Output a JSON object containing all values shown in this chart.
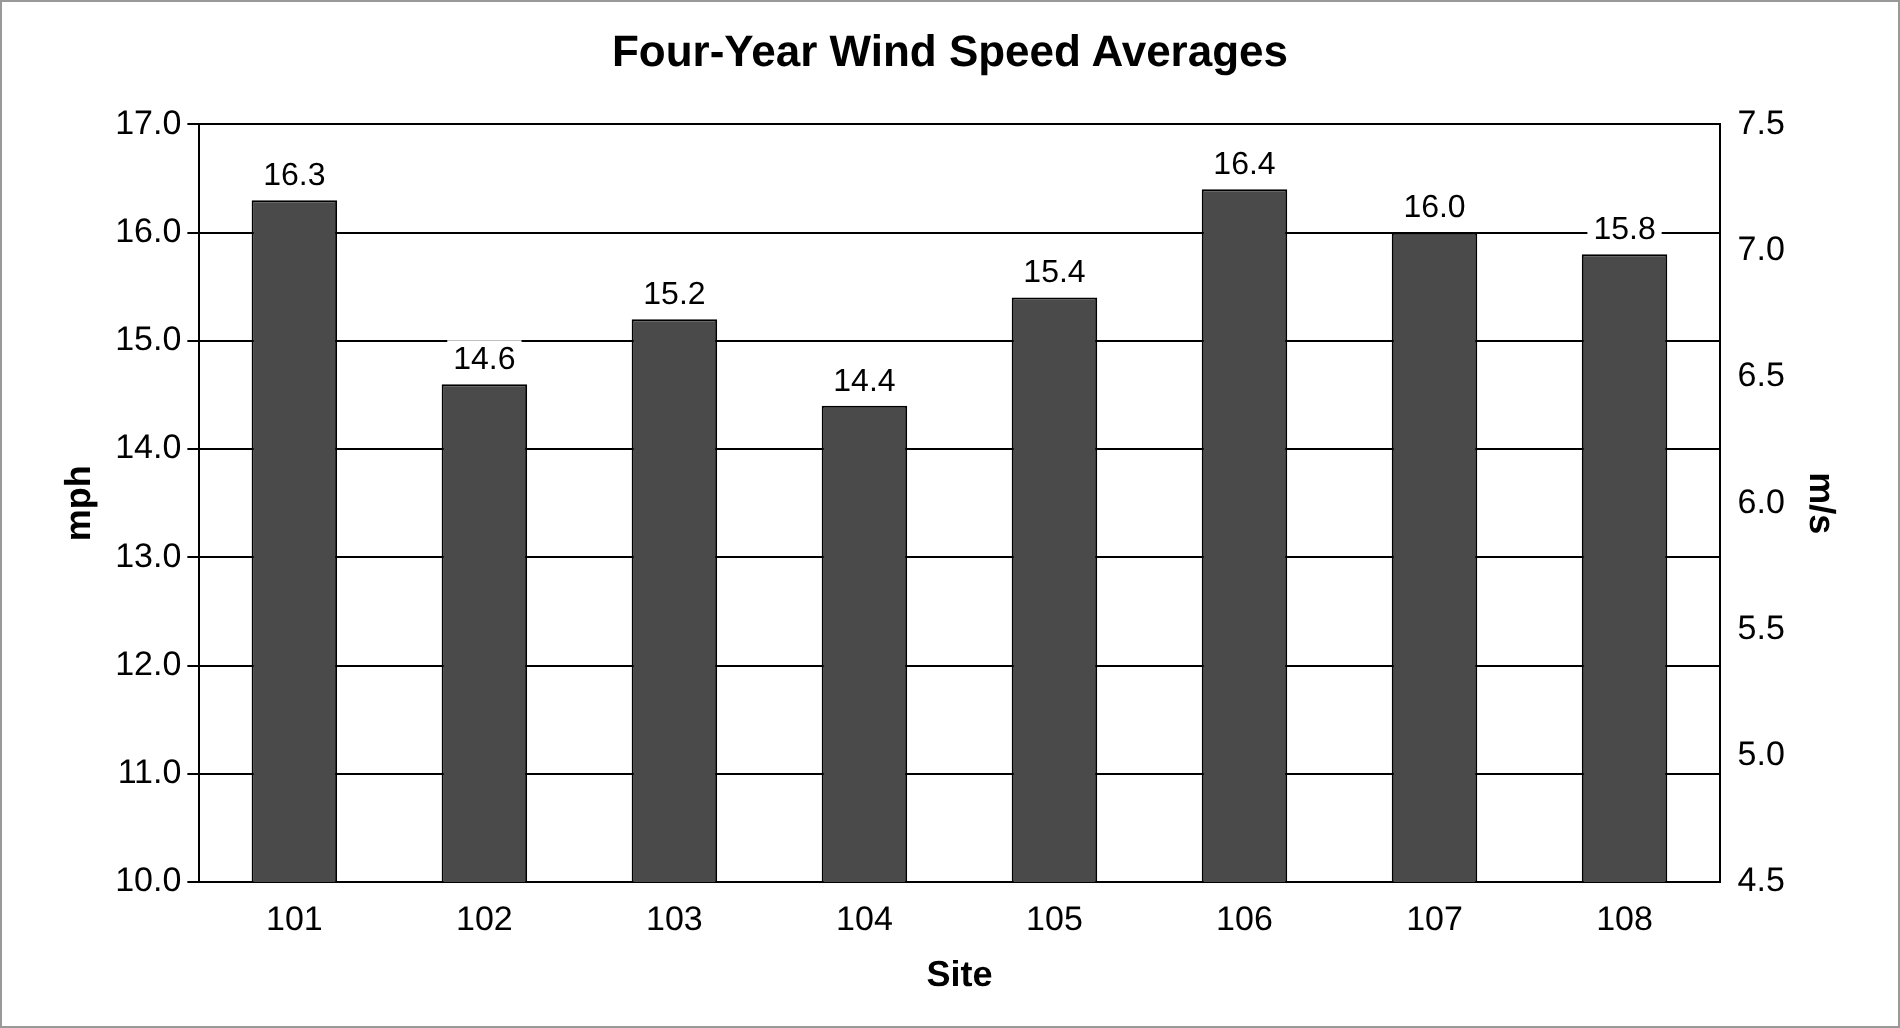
{
  "chart_data": {
    "type": "bar",
    "title": "Four-Year Wind Speed Averages",
    "xlabel": "Site",
    "ylabel": "mph",
    "y2label": "m/s",
    "categories": [
      "101",
      "102",
      "103",
      "104",
      "105",
      "106",
      "107",
      "108"
    ],
    "values": [
      16.3,
      14.6,
      15.2,
      14.4,
      15.4,
      16.4,
      16.0,
      15.8
    ],
    "color": "#4a4a4a",
    "ylim": [
      10,
      17
    ],
    "yticks": [
      {
        "value": 10,
        "label": "10.0"
      },
      {
        "value": 11,
        "label": "11.0"
      },
      {
        "value": 12,
        "label": "12.0"
      },
      {
        "value": 13,
        "label": "13.0"
      },
      {
        "value": 14,
        "label": "14.0"
      },
      {
        "value": 15,
        "label": "15.0"
      },
      {
        "value": 16,
        "label": "16.0"
      },
      {
        "value": 17,
        "label": "17.0"
      }
    ],
    "y2lim": [
      4.5,
      7.5
    ],
    "y2ticks": [
      4.5,
      {
        "value": 5,
        "label": "5.0"
      },
      5.5,
      {
        "value": 6,
        "label": "6.0"
      },
      6.5,
      {
        "value": 7,
        "label": "7.0"
      },
      7.5
    ],
    "value_labels": [
      "16.3",
      "14.6",
      "15.2",
      "14.4",
      "15.4",
      "16.4",
      "16.0",
      "15.8"
    ],
    "grid": "y",
    "legend": false
  }
}
